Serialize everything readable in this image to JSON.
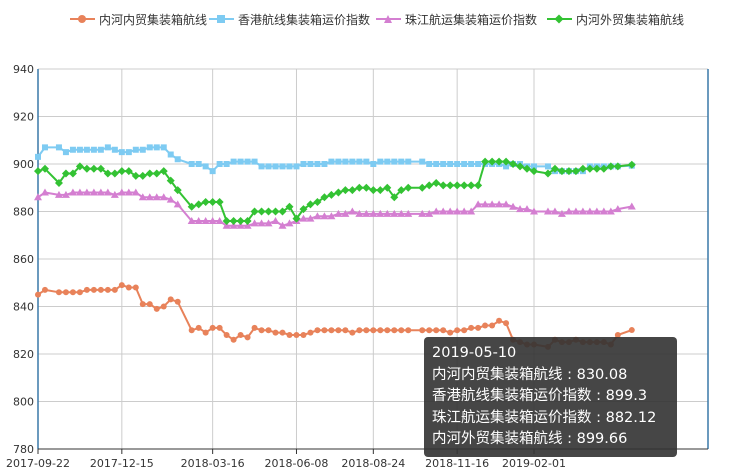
{
  "chart_data": {
    "type": "line",
    "title": "",
    "xlabel": "",
    "ylabel": "",
    "ylim": [
      780,
      940
    ],
    "yticks": [
      "780",
      "800",
      "820",
      "840",
      "860",
      "880",
      "900",
      "920",
      "940"
    ],
    "xtick_labels": [
      "2017-09-22",
      "2017-12-15",
      "2018-03-16",
      "2018-06-08",
      "2018-08-24",
      "2018-11-16",
      "2019-02-01"
    ],
    "grid": true,
    "legend_position": "top",
    "x": [
      "2017-09-22",
      "2017-09-29",
      "2017-10-13",
      "2017-10-20",
      "2017-10-27",
      "2017-11-03",
      "2017-11-10",
      "2017-11-17",
      "2017-11-24",
      "2017-12-01",
      "2017-12-08",
      "2017-12-15",
      "2017-12-22",
      "2017-12-29",
      "2018-01-05",
      "2018-01-12",
      "2018-01-19",
      "2018-01-26",
      "2018-02-02",
      "2018-02-09",
      "2018-02-23",
      "2018-03-02",
      "2018-03-09",
      "2018-03-16",
      "2018-03-23",
      "2018-03-30",
      "2018-04-06",
      "2018-04-13",
      "2018-04-20",
      "2018-04-27",
      "2018-05-04",
      "2018-05-11",
      "2018-05-18",
      "2018-05-25",
      "2018-06-01",
      "2018-06-08",
      "2018-06-15",
      "2018-06-22",
      "2018-06-29",
      "2018-07-06",
      "2018-07-13",
      "2018-07-20",
      "2018-07-27",
      "2018-08-03",
      "2018-08-10",
      "2018-08-17",
      "2018-08-24",
      "2018-08-31",
      "2018-09-07",
      "2018-09-14",
      "2018-09-21",
      "2018-09-28",
      "2018-10-12",
      "2018-10-19",
      "2018-10-26",
      "2018-11-02",
      "2018-11-09",
      "2018-11-16",
      "2018-11-23",
      "2018-11-30",
      "2018-12-07",
      "2018-12-14",
      "2018-12-21",
      "2018-12-28",
      "2019-01-04",
      "2019-01-11",
      "2019-01-18",
      "2019-01-25",
      "2019-02-01",
      "2019-02-15",
      "2019-02-22",
      "2019-03-01",
      "2019-03-08",
      "2019-03-15",
      "2019-03-22",
      "2019-03-29",
      "2019-04-05",
      "2019-04-12",
      "2019-04-19",
      "2019-04-26",
      "2019-05-10"
    ],
    "series": [
      {
        "name": "内河内贸集装箱航线",
        "color": "#e8825a",
        "marker": "circle",
        "values": [
          845,
          847,
          846,
          846,
          846,
          846,
          847,
          847,
          847,
          847,
          847,
          849,
          848,
          848,
          841,
          841,
          839,
          840,
          843,
          842,
          830,
          831,
          829,
          831,
          831,
          828,
          826,
          828,
          827,
          831,
          830,
          830,
          829,
          829,
          828,
          828,
          828,
          829,
          830,
          830,
          830,
          830,
          830,
          829,
          830,
          830,
          830,
          830,
          830,
          830,
          830,
          830,
          830,
          830,
          830,
          830,
          829,
          830,
          830,
          831,
          831,
          832,
          832,
          834,
          833,
          826,
          825,
          824,
          824,
          823,
          826,
          825,
          825,
          826,
          825,
          825,
          825,
          825,
          824,
          828,
          830.08
        ]
      },
      {
        "name": "香港航线集装箱运价指数",
        "color": "#7ecbf2",
        "marker": "square",
        "values": [
          903,
          907,
          907,
          905,
          906,
          906,
          906,
          906,
          906,
          907,
          906,
          905,
          905,
          906,
          906,
          907,
          907,
          907,
          904,
          902,
          900,
          900,
          899,
          897,
          900,
          900,
          901,
          901,
          901,
          901,
          899,
          899,
          899,
          899,
          899,
          899,
          900,
          900,
          900,
          900,
          901,
          901,
          901,
          901,
          901,
          901,
          900,
          901,
          901,
          901,
          901,
          901,
          901,
          900,
          900,
          900,
          900,
          900,
          900,
          900,
          900,
          900,
          900,
          900,
          899,
          900,
          900,
          899,
          899,
          899,
          897,
          897,
          897,
          897,
          897,
          899,
          899,
          899,
          899,
          899,
          899.3
        ]
      },
      {
        "name": "珠江航运集装箱运价指数",
        "color": "#d47fd1",
        "marker": "triangle",
        "values": [
          886,
          888,
          887,
          887,
          888,
          888,
          888,
          888,
          888,
          888,
          887,
          888,
          888,
          888,
          886,
          886,
          886,
          886,
          885,
          883,
          876,
          876,
          876,
          876,
          876,
          874,
          874,
          874,
          874,
          875,
          875,
          875,
          876,
          874,
          875,
          876,
          877,
          877,
          878,
          878,
          878,
          879,
          879,
          880,
          879,
          879,
          879,
          879,
          879,
          879,
          879,
          879,
          879,
          879,
          880,
          880,
          880,
          880,
          880,
          880,
          883,
          883,
          883,
          883,
          883,
          882,
          881,
          881,
          880,
          880,
          880,
          879,
          880,
          880,
          880,
          880,
          880,
          880,
          880,
          881,
          882.12
        ]
      },
      {
        "name": "内河外贸集装箱航线",
        "color": "#33c233",
        "marker": "diamond",
        "values": [
          897,
          898,
          892,
          896,
          896,
          899,
          898,
          898,
          898,
          896,
          896,
          897,
          897,
          895,
          895,
          896,
          896,
          897,
          893,
          889,
          882,
          883,
          884,
          884,
          884,
          876,
          876,
          876,
          876,
          880,
          880,
          880,
          880,
          880,
          882,
          877,
          881,
          883,
          884,
          886,
          887,
          888,
          889,
          889,
          890,
          890,
          889,
          889,
          890,
          886,
          889,
          890,
          890,
          891,
          892,
          891,
          891,
          891,
          891,
          891,
          891,
          901,
          901,
          901,
          901,
          900,
          899,
          898,
          897,
          896,
          898,
          897,
          897,
          897,
          898,
          898,
          898,
          898,
          899,
          899,
          899.66
        ]
      }
    ],
    "tooltip": {
      "date": "2019-05-10",
      "lines": [
        "内河内贸集装箱航线 : 830.08",
        "香港航线集装箱运价指数 : 899.3",
        "珠江航运集装箱运价指数 : 882.12",
        "内河外贸集装箱航线 : 899.66"
      ]
    }
  }
}
